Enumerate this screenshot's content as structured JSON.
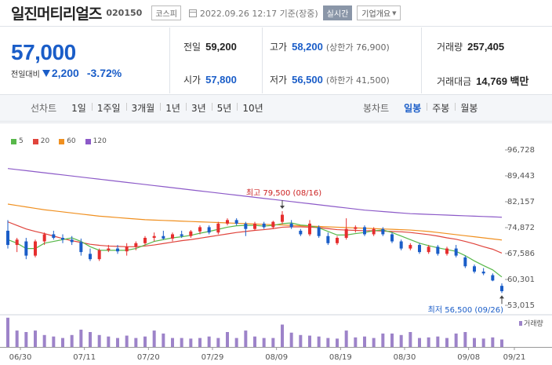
{
  "header": {
    "stock_name": "일진머티리얼즈",
    "stock_code": "020150",
    "market": "코스피",
    "timestamp": "2022.09.26 12:17 기준(장중)",
    "realtime_label": "실시간",
    "company_info_label": "기업개요"
  },
  "summary": {
    "current_price": "57,000",
    "change_label": "전일대비",
    "change_value": "2,200",
    "change_pct": "-3.72%",
    "prev_close_label": "전일",
    "prev_close": "59,200",
    "high_label": "고가",
    "high": "58,200",
    "upper_limit": "(상한가 76,900)",
    "volume_label": "거래량",
    "volume": "257,405",
    "open_label": "시가",
    "open": "57,800",
    "low_label": "저가",
    "low": "56,500",
    "lower_limit": "(하한가 41,500)",
    "amount_label": "거래대금",
    "amount": "14,769 백만"
  },
  "toolbar": {
    "line_chart_label": "선차트",
    "ranges": [
      "1일",
      "1주일",
      "3개월",
      "1년",
      "3년",
      "5년",
      "10년"
    ],
    "candle_chart_label": "봉차트",
    "periods": [
      "일봉",
      "주봉",
      "월봉"
    ],
    "active_period": "일봉"
  },
  "colors": {
    "up": "#e62e2e",
    "down": "#1a5dc8",
    "ma5": "#58b84a",
    "ma20": "#e0443c",
    "ma60": "#f09020",
    "ma120": "#8c5ac8",
    "volume": "#9d83c9"
  },
  "chart_data": {
    "type": "candlestick",
    "legend": [
      "5",
      "20",
      "60",
      "120"
    ],
    "y_ticks": [
      "96,728",
      "89,443",
      "82,157",
      "74,872",
      "67,586",
      "60,301",
      "53,015"
    ],
    "ylim": [
      53015,
      96728
    ],
    "x_labels": [
      "06/30",
      "07/11",
      "07/20",
      "07/29",
      "08/09",
      "08/19",
      "08/30",
      "09/08",
      "09/21"
    ],
    "volume_label": "거래량",
    "annotation_high": "최고 79,500 (08/16)",
    "annotation_low": "최저 56,500 (09/26)",
    "candles": [
      [
        74000,
        77000,
        69000,
        70000
      ],
      [
        70000,
        72000,
        68000,
        71500
      ],
      [
        71000,
        72000,
        66000,
        67000
      ],
      [
        67000,
        71500,
        66500,
        71000
      ],
      [
        71000,
        73500,
        70000,
        73000
      ],
      [
        73000,
        74000,
        71500,
        72000
      ],
      [
        72000,
        73000,
        70500,
        71500
      ],
      [
        71500,
        72500,
        70000,
        70800
      ],
      [
        70800,
        71800,
        67000,
        68000
      ],
      [
        67500,
        69000,
        65500,
        66000
      ],
      [
        66000,
        69000,
        65500,
        68500
      ],
      [
        68500,
        70000,
        68000,
        69000
      ],
      [
        69000,
        70000,
        67500,
        68200
      ],
      [
        68200,
        70500,
        67000,
        69500
      ],
      [
        69500,
        71000,
        68500,
        70500
      ],
      [
        70500,
        72500,
        70000,
        72000
      ],
      [
        72000,
        73500,
        71000,
        72500
      ],
      [
        72500,
        74000,
        71500,
        71800
      ],
      [
        71800,
        73500,
        71000,
        73000
      ],
      [
        73000,
        74000,
        72000,
        72500
      ],
      [
        72500,
        74200,
        72000,
        73800
      ],
      [
        73800,
        75500,
        73000,
        75000
      ],
      [
        75000,
        75500,
        73000,
        73500
      ],
      [
        73500,
        76500,
        73000,
        76000
      ],
      [
        76000,
        77500,
        75500,
        77000
      ],
      [
        77000,
        77500,
        75500,
        76000
      ],
      [
        76000,
        76500,
        72500,
        74500
      ],
      [
        74500,
        76500,
        74000,
        76000
      ],
      [
        76000,
        76500,
        74500,
        75000
      ],
      [
        75000,
        76800,
        74500,
        76500
      ],
      [
        76500,
        79500,
        75800,
        78500
      ],
      [
        76000,
        77000,
        74500,
        75000
      ],
      [
        74000,
        74500,
        72500,
        73000
      ],
      [
        73000,
        77000,
        72500,
        76000
      ],
      [
        75000,
        75500,
        72000,
        72500
      ],
      [
        72500,
        73500,
        70000,
        70500
      ],
      [
        70500,
        72500,
        70000,
        72000
      ],
      [
        72000,
        77500,
        71500,
        74500
      ],
      [
        74500,
        75500,
        73500,
        75000
      ],
      [
        75000,
        75500,
        72500,
        73000
      ],
      [
        73000,
        75000,
        72500,
        74500
      ],
      [
        74500,
        75000,
        72500,
        73000
      ],
      [
        73000,
        73500,
        70500,
        71000
      ],
      [
        71000,
        71500,
        68500,
        69000
      ],
      [
        69000,
        70500,
        68500,
        70000
      ],
      [
        70000,
        70500,
        67500,
        68000
      ],
      [
        68000,
        70000,
        67500,
        69500
      ],
      [
        69500,
        70000,
        67000,
        67500
      ],
      [
        67500,
        69500,
        67000,
        69000
      ],
      [
        69000,
        70000,
        66500,
        67000
      ],
      [
        66500,
        67000,
        63500,
        64000
      ],
      [
        64000,
        64500,
        62000,
        62500
      ],
      [
        62500,
        63500,
        61500,
        62000
      ],
      [
        61500,
        62000,
        59800,
        60000
      ],
      [
        58500,
        59200,
        56500,
        57000
      ]
    ],
    "volume": [
      0.98,
      0.55,
      0.5,
      0.55,
      0.4,
      0.35,
      0.3,
      0.4,
      0.58,
      0.5,
      0.4,
      0.35,
      0.3,
      0.38,
      0.3,
      0.35,
      0.55,
      0.45,
      0.3,
      0.3,
      0.28,
      0.3,
      0.35,
      0.3,
      0.5,
      0.3,
      0.55,
      0.35,
      0.3,
      0.3,
      0.75,
      0.48,
      0.4,
      0.38,
      0.35,
      0.3,
      0.28,
      0.55,
      0.32,
      0.35,
      0.3,
      0.45,
      0.45,
      0.4,
      0.5,
      0.3,
      0.32,
      0.35,
      0.3,
      0.45,
      0.5,
      0.3,
      0.28,
      0.32,
      0.25
    ],
    "ma5": [
      71500,
      70500,
      69000,
      69000,
      70500,
      71000,
      71500,
      72000,
      71000,
      69500,
      68500,
      68500,
      68500,
      68500,
      69000,
      70000,
      71000,
      71500,
      72000,
      72300,
      72700,
      73300,
      73800,
      74400,
      75000,
      75400,
      75500,
      75500,
      75300,
      75500,
      76000,
      76200,
      75600,
      75400,
      74800,
      73800,
      72800,
      72800,
      73200,
      73500,
      74000,
      74200,
      73500,
      72500,
      71500,
      70500,
      69800,
      69200,
      68700,
      68200,
      67000,
      65500,
      64200,
      63000,
      61000
    ],
    "ma20": [
      76500,
      75500,
      74500,
      73800,
      73200,
      72500,
      71800,
      71200,
      70700,
      70200,
      69900,
      69700,
      69600,
      69500,
      69500,
      69700,
      70000,
      70400,
      70800,
      71200,
      71500,
      71900,
      72300,
      72700,
      73100,
      73500,
      73800,
      74100,
      74300,
      74600,
      75000,
      75100,
      75100,
      75000,
      74900,
      74600,
      74300,
      74200,
      74100,
      74000,
      74000,
      73900,
      73800,
      73700,
      73500,
      73200,
      72900,
      72500,
      72000,
      71600,
      71000,
      70300,
      69500,
      68800,
      67700
    ],
    "ma60": [
      81500,
      81100,
      80700,
      80300,
      79900,
      79600,
      79300,
      79000,
      78700,
      78400,
      78100,
      77900,
      77700,
      77500,
      77300,
      77100,
      77000,
      76900,
      76800,
      76700,
      76600,
      76500,
      76400,
      76300,
      76200,
      76100,
      76000,
      75900,
      75800,
      75700,
      75600,
      75500,
      75400,
      75300,
      75200,
      75100,
      75000,
      74900,
      74800,
      74700,
      74600,
      74500,
      74400,
      74300,
      74200,
      74000,
      73800,
      73500,
      73200,
      72900,
      72600,
      72300,
      72000,
      71700,
      71400
    ],
    "ma120": [
      91500,
      91200,
      90900,
      90600,
      90300,
      90000,
      89700,
      89400,
      89100,
      88800,
      88500,
      88200,
      87900,
      87600,
      87300,
      87000,
      86700,
      86400,
      86100,
      85800,
      85500,
      85200,
      84900,
      84600,
      84300,
      84000,
      83700,
      83400,
      83100,
      82800,
      82500,
      82200,
      81900,
      81600,
      81300,
      81000,
      80700,
      80400,
      80100,
      79800,
      79600,
      79400,
      79200,
      79000,
      78800,
      78700,
      78600,
      78500,
      78400,
      78300,
      78200,
      78100,
      78000,
      77900,
      77800
    ]
  }
}
